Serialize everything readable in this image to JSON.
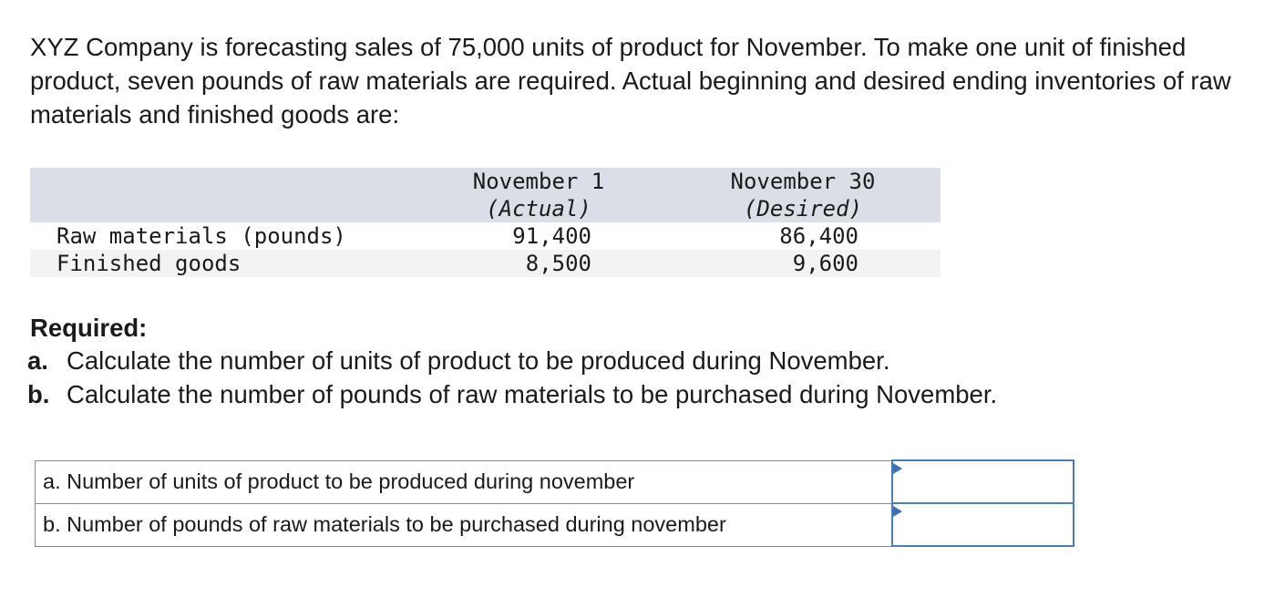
{
  "problem": {
    "intro_text": "XYZ Company is forecasting sales of 75,000 units of product for November. To make one unit of finished product, seven pounds of raw materials are required. Actual beginning and desired ending inventories of raw materials and finished goods are:"
  },
  "inventory_table": {
    "col_a_line1": "November 1",
    "col_a_line2": "(Actual)",
    "col_b_line1": "November 30",
    "col_b_line2": "(Desired)",
    "rows": [
      {
        "label": "Raw materials (pounds)",
        "nov1": "91,400",
        "nov30": "86,400"
      },
      {
        "label": "Finished goods",
        "nov1": "8,500",
        "nov30": "9,600"
      }
    ]
  },
  "required": {
    "title": "Required:",
    "items": [
      {
        "marker": "a.",
        "text": "Calculate the number of units of product to be produced during November."
      },
      {
        "marker": "b.",
        "text": "Calculate the number of pounds of raw materials to be purchased during November."
      }
    ]
  },
  "answers": {
    "rows": [
      {
        "label": "a. Number of units of product to be produced during november",
        "value": ""
      },
      {
        "label": "b. Number of pounds of raw materials to be purchased during november",
        "value": ""
      }
    ]
  },
  "colors": {
    "table_header_bg": "#d9dee7",
    "input_border": "#4f79b7",
    "input_marker": "#3f6fb5"
  }
}
